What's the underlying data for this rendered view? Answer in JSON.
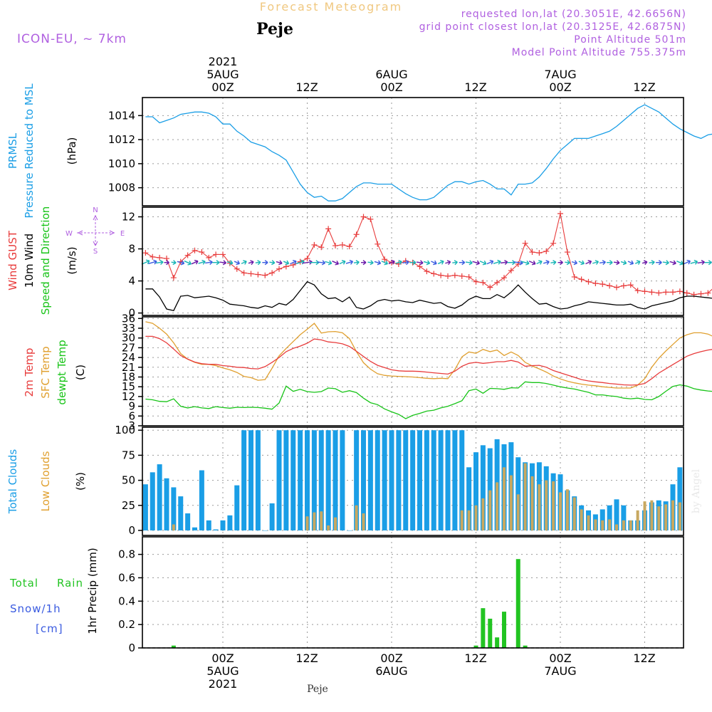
{
  "header": {
    "top_title": "Forecast Meteogram",
    "location": "Peje",
    "model": "ICON-EU, ~ 7km",
    "requested": "requested lon,lat (20.3051E, 42.6656N)",
    "grid_point": "grid point closest lon,lat (20.3125E, 42.6875N)",
    "point_altitude": "Point Altitude 501m",
    "model_altitude": "Model Point Altitude 755.375m",
    "watermark": "by Angel",
    "footer_location": "Peje"
  },
  "time_axis": {
    "top_year": "2021",
    "top_day_labels": [
      "5AUG",
      "6AUG",
      "7AUG"
    ],
    "hour_labels": [
      "00Z",
      "12Z",
      "00Z",
      "12Z",
      "00Z",
      "12Z"
    ],
    "bottom_day_labels": [
      "5AUG",
      "6AUG",
      "7AUG"
    ],
    "bottom_year": "2021"
  },
  "panel_labels": {
    "pressure": [
      "PRMSL",
      "Pressure Reduced to MSL",
      "(hPa)"
    ],
    "wind": [
      "Wind GUST",
      "10m Wind",
      "Speed and Direction",
      "(m/s)"
    ],
    "compass": {
      "n": "N",
      "s": "S",
      "w": "W",
      "e": "E"
    },
    "temp": [
      "2m Temp",
      "SFC Temp",
      "dewpt Temp",
      "(C)"
    ],
    "clouds": [
      "Total Clouds",
      "Low Clouds",
      "(%)"
    ],
    "precip_ylabel": "1hr Precip (mm)",
    "precip_legend": [
      "Total",
      "Rain",
      "Snow/1h",
      "[cm]"
    ]
  },
  "colors": {
    "pressure": "#1a9ee6",
    "gust": "#e83c3c",
    "wind_speed": "#000000",
    "wind_dir": [
      "#17b5b5",
      "#3a5be0",
      "#6a18a8",
      "#2ec82e"
    ],
    "temp2m": "#e83c3c",
    "sfc_temp": "#e0a030",
    "dewpt": "#18c418",
    "total_clouds": "#1a9ee6",
    "low_clouds": "#c8a860",
    "precip": "#22c422",
    "magenta_text": "#b060e0"
  },
  "chart_data": [
    {
      "type": "line",
      "name": "pressure",
      "series": [
        {
          "name": "PRMSL",
          "values": [
            1013.9,
            1013.9,
            1013.4,
            1013.6,
            1013.8,
            1014.1,
            1014.2,
            1014.3,
            1014.3,
            1014.2,
            1013.9,
            1013.3,
            1013.3,
            1012.7,
            1012.3,
            1011.8,
            1011.6,
            1011.4,
            1011.0,
            1010.7,
            1010.3,
            1009.3,
            1008.3,
            1007.6,
            1007.2,
            1007.3,
            1006.9,
            1006.9,
            1007.1,
            1007.6,
            1008.1,
            1008.4,
            1008.4,
            1008.3,
            1008.3,
            1008.3,
            1007.9,
            1007.5,
            1007.2,
            1007.0,
            1007.0,
            1007.2,
            1007.7,
            1008.2,
            1008.5,
            1008.5,
            1008.3,
            1008.5,
            1008.6,
            1008.3,
            1007.9,
            1007.9,
            1007.4,
            1008.3,
            1008.3,
            1008.4,
            1008.9,
            1009.6,
            1010.4,
            1011.1,
            1011.6,
            1012.1,
            1012.1,
            1012.1,
            1012.3,
            1012.5,
            1012.7,
            1013.1,
            1013.6,
            1014.1,
            1014.6,
            1014.9,
            1014.6,
            1014.3,
            1013.8,
            1013.3,
            1012.9,
            1012.6,
            1012.3,
            1012.1,
            1012.4,
            1012.5
          ]
        }
      ],
      "ylim": [
        1006.5,
        1015.5
      ],
      "yticks": [
        "1008",
        "1010",
        "1012",
        "1014"
      ]
    },
    {
      "type": "line",
      "name": "wind",
      "series": [
        {
          "name": "Wind GUST",
          "values": [
            7.5,
            7.0,
            6.9,
            6.8,
            4.4,
            6.4,
            7.2,
            7.8,
            7.6,
            6.9,
            7.3,
            7.3,
            6.2,
            5.5,
            5.0,
            4.9,
            4.8,
            4.7,
            5.0,
            5.5,
            5.8,
            6.0,
            6.4,
            6.8,
            8.5,
            8.2,
            10.5,
            8.4,
            8.5,
            8.3,
            9.8,
            12.0,
            11.7,
            8.6,
            6.7,
            6.3,
            6.1,
            6.5,
            6.3,
            5.8,
            5.2,
            4.9,
            4.7,
            4.6,
            4.7,
            4.6,
            4.5,
            3.9,
            3.8,
            3.2,
            3.8,
            4.4,
            5.3,
            6.1,
            8.7,
            7.6,
            7.5,
            7.7,
            8.7,
            12.4,
            7.6,
            4.5,
            4.2,
            3.9,
            3.7,
            3.6,
            3.4,
            3.2,
            3.4,
            3.5,
            2.8,
            2.7,
            2.6,
            2.5,
            2.6,
            2.6,
            2.7,
            2.5,
            2.3,
            2.4,
            2.5,
            3.3,
            4.3,
            5.4,
            5.6,
            5.7,
            5.8,
            6.0,
            6.0,
            5.8,
            5.3,
            4.5
          ]
        },
        {
          "name": "10m Wind",
          "values": [
            3.0,
            3.0,
            2.0,
            0.5,
            0.3,
            2.1,
            2.2,
            1.9,
            2.0,
            2.1,
            1.9,
            1.6,
            1.1,
            1.0,
            0.9,
            0.7,
            0.6,
            0.9,
            0.7,
            1.2,
            1.0,
            1.7,
            2.8,
            3.9,
            3.5,
            2.4,
            1.8,
            1.9,
            1.4,
            2.0,
            0.7,
            0.5,
            0.9,
            1.5,
            1.7,
            1.5,
            1.6,
            1.4,
            1.3,
            1.6,
            1.4,
            1.2,
            1.3,
            0.8,
            0.6,
            1.0,
            1.7,
            2.1,
            1.8,
            1.8,
            2.3,
            1.9,
            2.6,
            3.5,
            2.6,
            1.8,
            1.1,
            1.2,
            0.8,
            0.5,
            0.6,
            0.9,
            1.1,
            1.4,
            1.3,
            1.2,
            1.1,
            1.0,
            1.0,
            1.1,
            0.7,
            0.5,
            0.9,
            1.1,
            1.3,
            1.5,
            1.9,
            2.1,
            2.1,
            2.0,
            1.9,
            1.8,
            1.4,
            0.4
          ]
        }
      ],
      "ylim": [
        -0.3,
        13.2
      ],
      "yticks": [
        "0",
        "4",
        "8",
        "12"
      ]
    },
    {
      "type": "line",
      "name": "temperature",
      "series": [
        {
          "name": "2m Temp",
          "values": [
            30.5,
            30.5,
            29.8,
            28.5,
            26.6,
            24.6,
            23.5,
            22.6,
            22.1,
            21.9,
            21.9,
            21.5,
            21.3,
            21.0,
            20.9,
            20.6,
            20.5,
            21.2,
            22.5,
            24.0,
            25.8,
            26.8,
            27.5,
            28.4,
            29.7,
            29.4,
            28.8,
            28.6,
            28.2,
            27.4,
            25.9,
            24.3,
            22.8,
            21.6,
            20.9,
            20.2,
            19.9,
            19.8,
            19.8,
            19.7,
            19.5,
            19.3,
            19.1,
            18.9,
            19.8,
            21.3,
            22.2,
            22.5,
            22.2,
            22.4,
            22.7,
            22.7,
            23.1,
            22.6,
            21.3,
            21.5,
            21.6,
            21.0,
            20.0,
            19.3,
            18.6,
            17.9,
            17.2,
            16.8,
            16.5,
            16.3,
            16.0,
            15.8,
            15.6,
            15.5,
            15.6,
            16.0,
            17.5,
            19.2,
            20.5,
            21.8,
            23.1,
            24.4,
            25.2,
            25.8,
            26.3,
            26.6,
            26.6,
            26.5,
            26.0,
            25.4,
            24.5
          ]
        },
        {
          "name": "SFC Temp",
          "values": [
            35.0,
            34.5,
            33.0,
            31.2,
            28.5,
            25.2,
            23.5,
            22.5,
            21.9,
            21.9,
            21.5,
            20.8,
            20.2,
            19.4,
            18.2,
            17.8,
            17.0,
            17.2,
            20.7,
            24.5,
            26.8,
            28.9,
            31.0,
            32.7,
            34.5,
            31.5,
            31.9,
            32.0,
            31.6,
            29.8,
            25.8,
            22.4,
            20.4,
            19.0,
            18.5,
            18.3,
            18.2,
            18.1,
            18.0,
            17.8,
            17.6,
            17.5,
            17.6,
            17.5,
            20.3,
            24.2,
            25.7,
            25.3,
            26.5,
            25.8,
            26.3,
            24.6,
            25.7,
            24.6,
            22.5,
            21.4,
            20.5,
            19.5,
            18.3,
            17.4,
            16.7,
            16.2,
            15.8,
            15.5,
            15.3,
            15.0,
            14.8,
            14.6,
            14.6,
            14.6,
            15.5,
            17.5,
            21.0,
            23.8,
            26.0,
            28.0,
            30.0,
            31.0,
            31.6,
            31.6,
            31.2,
            30.2,
            28.8,
            27.2,
            25.0
          ]
        },
        {
          "name": "dewpt Temp",
          "values": [
            11.2,
            11.0,
            10.5,
            10.4,
            11.3,
            9.0,
            8.5,
            8.9,
            8.5,
            8.3,
            8.9,
            8.6,
            8.4,
            8.7,
            8.6,
            8.7,
            8.6,
            8.4,
            8.1,
            10.0,
            15.2,
            13.6,
            14.2,
            13.5,
            13.3,
            13.5,
            14.6,
            14.4,
            13.3,
            13.8,
            13.2,
            11.5,
            10.1,
            9.5,
            8.2,
            7.3,
            6.5,
            5.2,
            6.2,
            6.8,
            7.5,
            7.8,
            8.5,
            9.0,
            9.8,
            10.7,
            13.8,
            14.3,
            13.0,
            14.5,
            14.4,
            14.2,
            14.7,
            14.6,
            16.5,
            16.3,
            16.3,
            16.0,
            15.5,
            15.0,
            14.6,
            14.3,
            13.8,
            13.3,
            12.5,
            12.5,
            12.2,
            12.0,
            11.5,
            11.3,
            11.5,
            11.1,
            11.0,
            12.0,
            13.6,
            15.1,
            15.6,
            15.2,
            14.4,
            14.0,
            13.7,
            13.5,
            13.1,
            12.8,
            12.5,
            12.5,
            12.8,
            13.8
          ]
        }
      ],
      "ylim": [
        3,
        36.5
      ],
      "yticks": [
        "3",
        "6",
        "9",
        "12",
        "15",
        "18",
        "21",
        "24",
        "27",
        "30",
        "33",
        "36"
      ]
    },
    {
      "type": "bar",
      "name": "clouds",
      "series": [
        {
          "name": "Total Clouds",
          "values": [
            46,
            58,
            66,
            52,
            43,
            34,
            17,
            3,
            60,
            10,
            1,
            10,
            15,
            45,
            100,
            100,
            100,
            0,
            27,
            100,
            100,
            100,
            100,
            100,
            100,
            100,
            100,
            100,
            100,
            0,
            100,
            100,
            100,
            100,
            100,
            100,
            100,
            100,
            100,
            100,
            100,
            100,
            100,
            100,
            100,
            100,
            63,
            78,
            85,
            82,
            91,
            86,
            88,
            73,
            68,
            67,
            68,
            64,
            57,
            56,
            40,
            34,
            25,
            20,
            16,
            21,
            25,
            31,
            25,
            10,
            10,
            20,
            28,
            30,
            29,
            46,
            63,
            50,
            53,
            35,
            45,
            100,
            100
          ]
        },
        {
          "name": "Low Clouds",
          "values": [
            0,
            0,
            0,
            0,
            6,
            0,
            0,
            0,
            0,
            0,
            0,
            0,
            0,
            0,
            0,
            0,
            0,
            0,
            0,
            0,
            0,
            0,
            0,
            14,
            18,
            19,
            5,
            13,
            0,
            0,
            25,
            17,
            0,
            0,
            0,
            0,
            0,
            0,
            0,
            0,
            0,
            0,
            0,
            0,
            0,
            20,
            20,
            25,
            32,
            40,
            48,
            63,
            55,
            36,
            67,
            54,
            46,
            50,
            49,
            38,
            41,
            33,
            21,
            15,
            11,
            10,
            11,
            6,
            10,
            10,
            20,
            29,
            30,
            24,
            26,
            30,
            28,
            24,
            25,
            24,
            17,
            27
          ]
        }
      ],
      "ylim": [
        -5,
        103
      ],
      "yticks": [
        "0",
        "25",
        "50",
        "75",
        "100"
      ]
    },
    {
      "type": "bar",
      "name": "precip",
      "series": [
        {
          "name": "1hr Precip",
          "values": [
            {
              "t": 4,
              "v": 0.02
            },
            {
              "t": 47,
              "v": 0.02
            },
            {
              "t": 48,
              "v": 0.34
            },
            {
              "t": 49,
              "v": 0.25
            },
            {
              "t": 50,
              "v": 0.09
            },
            {
              "t": 51,
              "v": 0.31
            },
            {
              "t": 53,
              "v": 0.76
            },
            {
              "t": 54,
              "v": 0.02
            }
          ]
        }
      ],
      "ylim": [
        0,
        0.95
      ],
      "yticks": [
        "0",
        "0.2",
        "0.4",
        "0.6",
        "0.8"
      ]
    }
  ]
}
